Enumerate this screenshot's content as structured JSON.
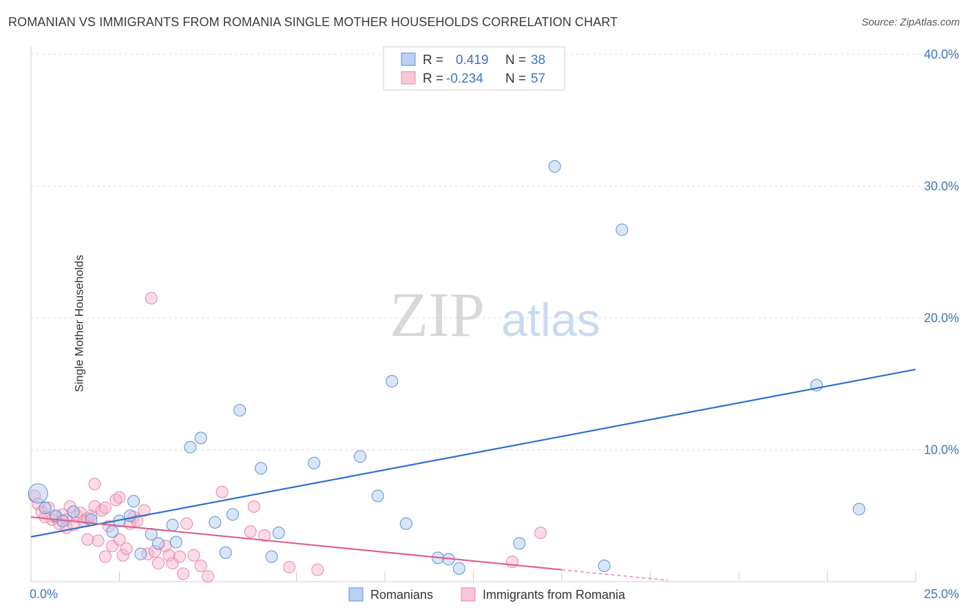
{
  "header": {
    "title": "ROMANIAN VS IMMIGRANTS FROM ROMANIA SINGLE MOTHER HOUSEHOLDS CORRELATION CHART",
    "source": "Source: ZipAtlas.com"
  },
  "watermark": {
    "part1": "ZIP",
    "part2": "atlas"
  },
  "legend": {
    "r_label": "R =",
    "n_label": "N =",
    "rows": [
      {
        "r": "0.419",
        "n": "38",
        "color": "#5b8fd6"
      },
      {
        "r": "-0.234",
        "n": "57",
        "color": "#e887a6"
      }
    ]
  },
  "bottom_legend": [
    {
      "label": "Romanians",
      "color": "#5b8fd6"
    },
    {
      "label": "Immigrants from Romania",
      "color": "#e887a6"
    }
  ],
  "chart_data": {
    "type": "scatter",
    "title": "ROMANIAN VS IMMIGRANTS FROM ROMANIA SINGLE MOTHER HOUSEHOLDS CORRELATION CHART",
    "xlabel": "",
    "ylabel": "Single Mother Households",
    "xlim": [
      0,
      25
    ],
    "ylim": [
      0,
      40
    ],
    "x_tick_labels": [
      "0.0%",
      "25.0%"
    ],
    "y_ticks": [
      10,
      20,
      30,
      40
    ],
    "y_tick_labels": [
      "10.0%",
      "20.0%",
      "30.0%",
      "40.0%"
    ],
    "grid": true,
    "legend_position": "top-center",
    "series": [
      {
        "name": "Romanians",
        "color": "#5b8fd6",
        "trend": [
          [
            0,
            3.4
          ],
          [
            25,
            16.1
          ]
        ],
        "points": [
          [
            0.2,
            6.7
          ],
          [
            0.4,
            5.6
          ],
          [
            0.7,
            5.0
          ],
          [
            0.9,
            4.6
          ],
          [
            1.2,
            5.3
          ],
          [
            1.7,
            4.7
          ],
          [
            2.3,
            3.8
          ],
          [
            2.5,
            4.6
          ],
          [
            2.8,
            5.0
          ],
          [
            2.9,
            6.1
          ],
          [
            3.1,
            2.1
          ],
          [
            3.4,
            3.6
          ],
          [
            3.6,
            2.9
          ],
          [
            4.0,
            4.3
          ],
          [
            4.1,
            3.0
          ],
          [
            4.5,
            10.2
          ],
          [
            4.8,
            10.9
          ],
          [
            5.2,
            4.5
          ],
          [
            5.5,
            2.2
          ],
          [
            5.7,
            5.1
          ],
          [
            5.9,
            13.0
          ],
          [
            6.5,
            8.6
          ],
          [
            6.8,
            1.9
          ],
          [
            7.0,
            3.7
          ],
          [
            8.0,
            9.0
          ],
          [
            9.3,
            9.5
          ],
          [
            9.8,
            6.5
          ],
          [
            10.2,
            15.2
          ],
          [
            10.6,
            4.4
          ],
          [
            11.5,
            1.8
          ],
          [
            11.8,
            1.7
          ],
          [
            12.1,
            1.0
          ],
          [
            13.8,
            2.9
          ],
          [
            14.8,
            31.5
          ],
          [
            16.2,
            1.2
          ],
          [
            16.7,
            26.7
          ],
          [
            22.2,
            14.9
          ],
          [
            23.4,
            5.5
          ]
        ]
      },
      {
        "name": "Immigrants from Romania",
        "color": "#e887a6",
        "trend": [
          [
            0,
            4.9
          ],
          [
            15,
            0.9
          ]
        ],
        "trend_dashed": [
          [
            15,
            0.9
          ],
          [
            18,
            0.1
          ]
        ],
        "points": [
          [
            0.1,
            6.5
          ],
          [
            0.2,
            5.9
          ],
          [
            0.3,
            5.3
          ],
          [
            0.4,
            4.9
          ],
          [
            0.5,
            5.6
          ],
          [
            0.6,
            4.7
          ],
          [
            0.7,
            4.9
          ],
          [
            0.8,
            4.4
          ],
          [
            0.9,
            5.1
          ],
          [
            1.0,
            4.7
          ],
          [
            1.0,
            4.1
          ],
          [
            1.1,
            5.7
          ],
          [
            1.2,
            4.3
          ],
          [
            1.3,
            5.0
          ],
          [
            1.4,
            5.2
          ],
          [
            1.5,
            4.6
          ],
          [
            1.6,
            3.2
          ],
          [
            1.6,
            4.8
          ],
          [
            1.7,
            5.0
          ],
          [
            1.8,
            7.4
          ],
          [
            1.8,
            5.7
          ],
          [
            1.9,
            3.1
          ],
          [
            2.0,
            5.4
          ],
          [
            2.1,
            5.6
          ],
          [
            2.1,
            1.9
          ],
          [
            2.2,
            4.2
          ],
          [
            2.3,
            2.7
          ],
          [
            2.4,
            6.2
          ],
          [
            2.5,
            3.2
          ],
          [
            2.5,
            6.4
          ],
          [
            2.6,
            2.0
          ],
          [
            2.7,
            2.5
          ],
          [
            2.8,
            4.4
          ],
          [
            2.9,
            4.9
          ],
          [
            3.0,
            4.6
          ],
          [
            3.2,
            5.4
          ],
          [
            3.3,
            2.1
          ],
          [
            3.4,
            21.5
          ],
          [
            3.5,
            2.3
          ],
          [
            3.6,
            1.4
          ],
          [
            3.8,
            2.7
          ],
          [
            3.9,
            2.0
          ],
          [
            4.0,
            1.4
          ],
          [
            4.2,
            1.9
          ],
          [
            4.3,
            0.6
          ],
          [
            4.4,
            4.4
          ],
          [
            4.6,
            2.0
          ],
          [
            4.8,
            1.2
          ],
          [
            5.0,
            0.4
          ],
          [
            5.4,
            6.8
          ],
          [
            6.2,
            3.8
          ],
          [
            6.3,
            5.7
          ],
          [
            6.6,
            3.5
          ],
          [
            7.3,
            1.1
          ],
          [
            8.1,
            0.9
          ],
          [
            13.6,
            1.5
          ],
          [
            14.4,
            3.7
          ]
        ]
      }
    ]
  }
}
